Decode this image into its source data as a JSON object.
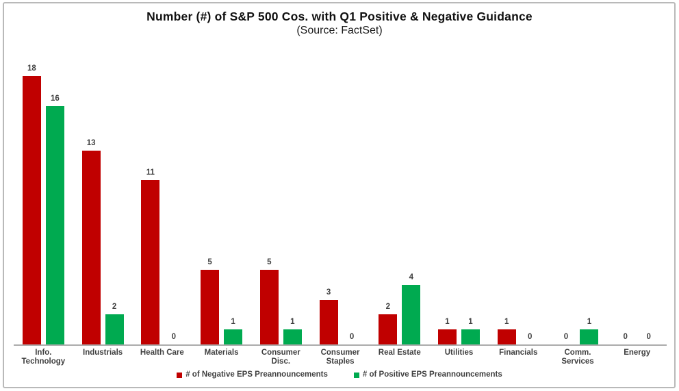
{
  "title": "Number (#) of S&P 500 Cos. with Q1 Positive & Negative Guidance",
  "subtitle": "(Source: FactSet)",
  "colors": {
    "negative": "#c00000",
    "positive": "#00aa50",
    "axis_line": "#ababab",
    "label_text": "#404040",
    "frame_border": "#b9b9b9"
  },
  "legend": [
    {
      "label": "# of Negative EPS Preannouncements",
      "color": "#c00000"
    },
    {
      "label": "# of Positive EPS Preannouncements",
      "color": "#00aa50"
    }
  ],
  "chart_data": {
    "type": "bar",
    "title": "Number (#) of S&P 500 Cos. with Q1 Positive & Negative Guidance",
    "subtitle": "(Source: FactSet)",
    "categories": [
      "Info.\nTechnology",
      "Industrials",
      "Health Care",
      "Materials",
      "Consumer\nDisc.",
      "Consumer\nStaples",
      "Real Estate",
      "Utilities",
      "Financials",
      "Comm.\nServices",
      "Energy"
    ],
    "series": [
      {
        "name": "# of Negative EPS Preannouncements",
        "color": "#c00000",
        "values": [
          18,
          13,
          11,
          5,
          5,
          3,
          2,
          1,
          1,
          0,
          0
        ]
      },
      {
        "name": "# of Positive EPS Preannouncements",
        "color": "#00aa50",
        "values": [
          16,
          2,
          0,
          1,
          1,
          0,
          4,
          1,
          0,
          1,
          0
        ]
      }
    ],
    "ylim": [
      0,
      18
    ],
    "grid": false,
    "y_axis_visible": false,
    "value_labels": true,
    "legend_position": "bottom"
  }
}
